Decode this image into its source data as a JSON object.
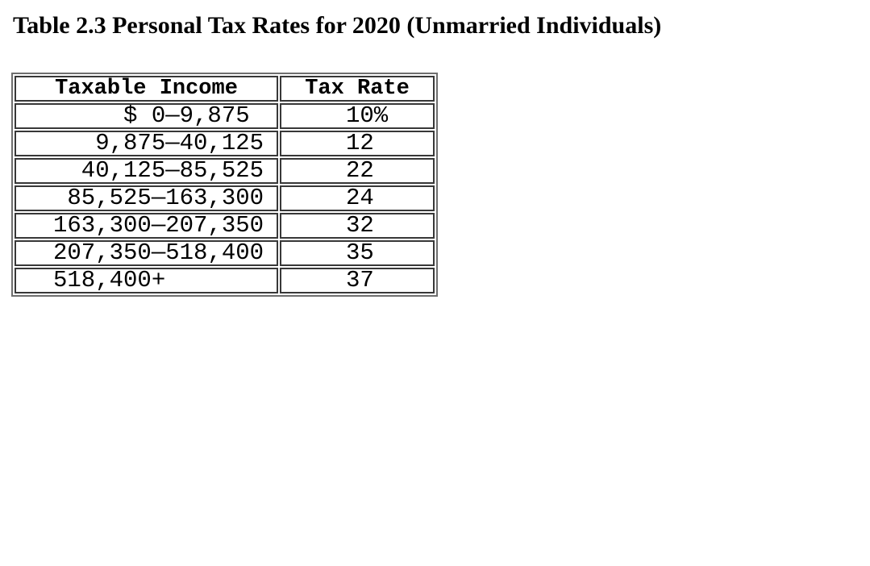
{
  "page": {
    "background": "#ffffff",
    "text_color": "#000000"
  },
  "title": "Table 2.3 Personal Tax Rates for 2020 (Unmarried Individuals)",
  "table": {
    "border_outer_color": "#6e6e6e",
    "border_cell_color": "#383838",
    "headers": {
      "income": "Taxable Income",
      "rate": "Tax Rate"
    },
    "rows": [
      {
        "income": "     $ 0—9,875",
        "rate": "10%"
      },
      {
        "income": "   9,875—40,125",
        "rate": "12"
      },
      {
        "income": "  40,125—85,525",
        "rate": "22"
      },
      {
        "income": " 85,525—163,300",
        "rate": "24"
      },
      {
        "income": "163,300—207,350",
        "rate": "32"
      },
      {
        "income": "207,350—518,400",
        "rate": "35"
      },
      {
        "income": "518,400+",
        "rate": "37"
      }
    ]
  }
}
